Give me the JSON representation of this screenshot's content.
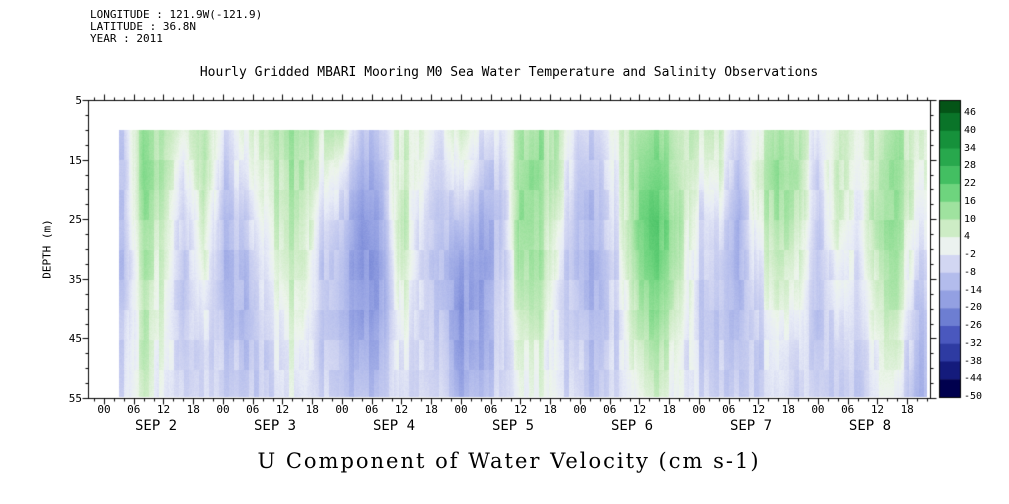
{
  "header": {
    "longitude": "LONGITUDE : 121.9W(-121.9)",
    "latitude": "LATITUDE : 36.8N",
    "year": "YEAR : 2011"
  },
  "chart_data": {
    "type": "heatmap",
    "title": "Hourly Gridded MBARI Mooring M0 Sea Water Temperature and Salinity Observations",
    "xlabel": "U Component of Water Velocity (cm s-1)",
    "ylabel": "DEPTH (m)",
    "y_ticks": [
      5,
      15,
      25,
      35,
      45,
      55
    ],
    "y_range": [
      5,
      55
    ],
    "hour_tick_labels": [
      "00",
      "06",
      "12",
      "18"
    ],
    "days": [
      "SEP 2",
      "SEP 3",
      "SEP 4",
      "SEP 5",
      "SEP 6",
      "SEP 7",
      "SEP 8"
    ],
    "colorbar_ticks": [
      46,
      40,
      34,
      28,
      22,
      16,
      10,
      4,
      -2,
      -8,
      -14,
      -20,
      -26,
      -32,
      -38,
      -44,
      -50
    ],
    "colormap": [
      [
        -53,
        "#000030"
      ],
      [
        -47,
        "#00004e"
      ],
      [
        -41,
        "#141b7c"
      ],
      [
        -35,
        "#2e3ba2"
      ],
      [
        -29,
        "#4a58be"
      ],
      [
        -23,
        "#6d7ed2"
      ],
      [
        -17,
        "#93a0e2"
      ],
      [
        -11,
        "#b3bcec"
      ],
      [
        -5,
        "#d2d6f2"
      ],
      [
        -1,
        "#e8ecf7"
      ],
      [
        2,
        "#edf5eb"
      ],
      [
        7,
        "#cdecc5"
      ],
      [
        13,
        "#9fe29f"
      ],
      [
        19,
        "#6ed47e"
      ],
      [
        25,
        "#43bf62"
      ],
      [
        31,
        "#28a84d"
      ],
      [
        37,
        "#16913b"
      ],
      [
        43,
        "#0a7429"
      ],
      [
        49,
        "#045417"
      ]
    ],
    "grid": {
      "time_basis": "hours since SEP 2 00:00",
      "t_start": 3,
      "t_end": 166,
      "col_hour_start": 4,
      "col_hour_step": 4,
      "depth_top": 10,
      "depth_bottom": 55,
      "row_depths": [
        10,
        17.5,
        25,
        32.5,
        40,
        47.5,
        55
      ],
      "columns": [
        [
          -6,
          -8,
          -8,
          -10,
          -8,
          -6,
          -4
        ],
        [
          12,
          14,
          12,
          10,
          8,
          6,
          4
        ],
        [
          10,
          8,
          6,
          4,
          2,
          0,
          -2
        ],
        [
          4,
          -2,
          -6,
          -8,
          -8,
          -6,
          -4
        ],
        [
          10,
          12,
          8,
          4,
          0,
          -4,
          -4
        ],
        [
          -4,
          -8,
          -12,
          -12,
          -10,
          -8,
          -6
        ],
        [
          2,
          -2,
          -8,
          -10,
          -12,
          -10,
          -8
        ],
        [
          8,
          6,
          2,
          -2,
          -4,
          -6,
          -6
        ],
        [
          12,
          10,
          8,
          6,
          2,
          0,
          -2
        ],
        [
          14,
          12,
          10,
          8,
          6,
          2,
          0
        ],
        [
          6,
          2,
          -4,
          -8,
          -8,
          -8,
          -6
        ],
        [
          8,
          -2,
          -8,
          -12,
          -12,
          -10,
          -8
        ],
        [
          -10,
          -14,
          -18,
          -20,
          -18,
          -14,
          -10
        ],
        [
          -6,
          -10,
          -14,
          -16,
          -16,
          -12,
          -10
        ],
        [
          6,
          8,
          10,
          8,
          4,
          0,
          -2
        ],
        [
          2,
          0,
          -4,
          -6,
          -6,
          -6,
          -4
        ],
        [
          -4,
          -8,
          -10,
          -12,
          -10,
          -8,
          -6
        ],
        [
          8,
          2,
          -6,
          -14,
          -18,
          -16,
          -12
        ],
        [
          0,
          -6,
          -12,
          -16,
          -14,
          -12,
          -10
        ],
        [
          -4,
          -8,
          -10,
          -10,
          -8,
          -8,
          -6
        ],
        [
          10,
          12,
          14,
          12,
          8,
          4,
          2
        ],
        [
          14,
          16,
          14,
          12,
          10,
          6,
          4
        ],
        [
          6,
          4,
          0,
          -4,
          -6,
          -6,
          -4
        ],
        [
          -6,
          -10,
          -12,
          -12,
          -10,
          -8,
          -6
        ],
        [
          -4,
          -8,
          -10,
          -12,
          -12,
          -10,
          -8
        ],
        [
          4,
          2,
          0,
          -2,
          -4,
          -4,
          -4
        ],
        [
          12,
          16,
          18,
          16,
          12,
          8,
          4
        ],
        [
          14,
          18,
          22,
          20,
          16,
          10,
          6
        ],
        [
          8,
          10,
          12,
          10,
          6,
          2,
          0
        ],
        [
          6,
          2,
          -4,
          -6,
          -6,
          -6,
          -4
        ],
        [
          8,
          4,
          -2,
          -6,
          -8,
          -8,
          -6
        ],
        [
          -6,
          -10,
          -14,
          -14,
          -12,
          -10,
          -8
        ],
        [
          4,
          6,
          4,
          0,
          -4,
          -6,
          -6
        ],
        [
          12,
          14,
          12,
          8,
          4,
          0,
          -2
        ],
        [
          10,
          12,
          10,
          6,
          2,
          -2,
          -4
        ],
        [
          -2,
          -6,
          -8,
          -10,
          -10,
          -8,
          -6
        ],
        [
          6,
          8,
          6,
          2,
          -2,
          -6,
          -8
        ],
        [
          2,
          0,
          -2,
          -4,
          -6,
          -8,
          -8
        ],
        [
          8,
          10,
          12,
          10,
          6,
          2,
          0
        ],
        [
          12,
          14,
          12,
          10,
          8,
          4,
          0
        ],
        [
          6,
          4,
          0,
          -4,
          -8,
          -10,
          -12
        ]
      ]
    }
  }
}
